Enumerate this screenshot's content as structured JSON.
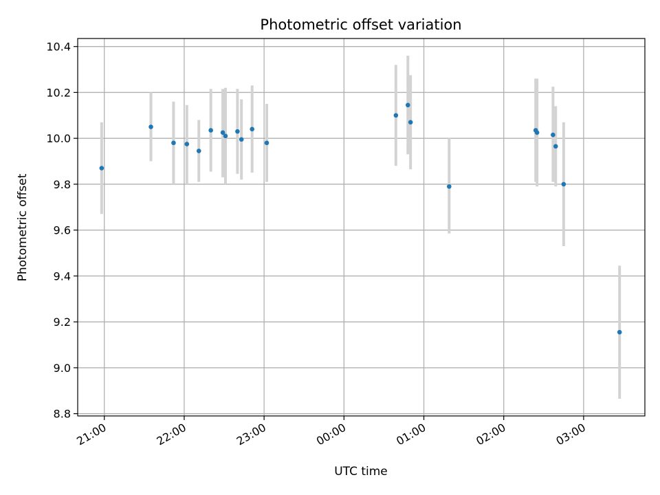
{
  "chart_data": {
    "type": "scatter",
    "title": "Photometric offset variation",
    "xlabel": "UTC time",
    "ylabel": "Photometric offset",
    "x_unit": "UTC date-time",
    "xlim": [
      "2000-01-01T20:40",
      "2000-01-02T03:46"
    ],
    "ylim": [
      8.79,
      10.435
    ],
    "grid": true,
    "colors": {
      "points": "#1f77b4",
      "errorbars": "#d3d3d3",
      "grid": "#b0b0b0"
    },
    "x_ticks": [
      {
        "t": "2000-01-01T21:00",
        "label": "21:00"
      },
      {
        "t": "2000-01-01T22:00",
        "label": "22:00"
      },
      {
        "t": "2000-01-01T23:00",
        "label": "23:00"
      },
      {
        "t": "2000-01-02T00:00",
        "label": "00:00"
      },
      {
        "t": "2000-01-02T01:00",
        "label": "01:00"
      },
      {
        "t": "2000-01-02T02:00",
        "label": "02:00"
      },
      {
        "t": "2000-01-02T03:00",
        "label": "03:00"
      }
    ],
    "y_ticks": [
      {
        "v": 8.8,
        "label": "8.8"
      },
      {
        "v": 9.0,
        "label": "9.0"
      },
      {
        "v": 9.2,
        "label": "9.2"
      },
      {
        "v": 9.4,
        "label": "9.4"
      },
      {
        "v": 9.6,
        "label": "9.6"
      },
      {
        "v": 9.8,
        "label": "9.8"
      },
      {
        "v": 10.0,
        "label": "10.0"
      },
      {
        "v": 10.2,
        "label": "10.2"
      },
      {
        "v": 10.4,
        "label": "10.4"
      }
    ],
    "points": [
      {
        "t": "2000-01-01T20:58",
        "y": 9.87,
        "ylo": 9.67,
        "yhi": 10.07
      },
      {
        "t": "2000-01-01T21:35",
        "y": 10.05,
        "ylo": 9.9,
        "yhi": 10.2
      },
      {
        "t": "2000-01-01T21:52",
        "y": 9.98,
        "ylo": 9.8,
        "yhi": 10.16
      },
      {
        "t": "2000-01-01T22:02",
        "y": 9.975,
        "ylo": 9.8,
        "yhi": 10.145
      },
      {
        "t": "2000-01-01T22:11",
        "y": 9.945,
        "ylo": 9.81,
        "yhi": 10.08
      },
      {
        "t": "2000-01-01T22:20",
        "y": 10.035,
        "ylo": 9.855,
        "yhi": 10.215
      },
      {
        "t": "2000-01-01T22:29",
        "y": 10.025,
        "ylo": 9.83,
        "yhi": 10.215
      },
      {
        "t": "2000-01-01T22:31",
        "y": 10.01,
        "ylo": 9.8,
        "yhi": 10.22
      },
      {
        "t": "2000-01-01T22:40",
        "y": 10.03,
        "ylo": 9.845,
        "yhi": 10.215
      },
      {
        "t": "2000-01-01T22:43",
        "y": 9.995,
        "ylo": 9.82,
        "yhi": 10.17
      },
      {
        "t": "2000-01-01T22:51",
        "y": 10.04,
        "ylo": 9.85,
        "yhi": 10.23
      },
      {
        "t": "2000-01-01T23:02",
        "y": 9.98,
        "ylo": 9.81,
        "yhi": 10.15
      },
      {
        "t": "2000-01-02T00:39",
        "y": 10.1,
        "ylo": 9.88,
        "yhi": 10.32
      },
      {
        "t": "2000-01-02T00:48",
        "y": 10.145,
        "ylo": 9.93,
        "yhi": 10.36
      },
      {
        "t": "2000-01-02T00:50",
        "y": 10.07,
        "ylo": 9.865,
        "yhi": 10.275
      },
      {
        "t": "2000-01-02T01:19",
        "y": 9.79,
        "ylo": 9.585,
        "yhi": 10.0
      },
      {
        "t": "2000-01-02T02:24",
        "y": 10.035,
        "ylo": 9.81,
        "yhi": 10.26
      },
      {
        "t": "2000-01-02T02:25",
        "y": 10.025,
        "ylo": 9.79,
        "yhi": 10.26
      },
      {
        "t": "2000-01-02T02:37",
        "y": 10.015,
        "ylo": 9.81,
        "yhi": 10.225
      },
      {
        "t": "2000-01-02T02:39",
        "y": 9.965,
        "ylo": 9.79,
        "yhi": 10.14
      },
      {
        "t": "2000-01-02T02:45",
        "y": 9.8,
        "ylo": 9.53,
        "yhi": 10.07
      },
      {
        "t": "2000-01-02T03:27",
        "y": 9.155,
        "ylo": 8.865,
        "yhi": 9.445
      }
    ]
  }
}
